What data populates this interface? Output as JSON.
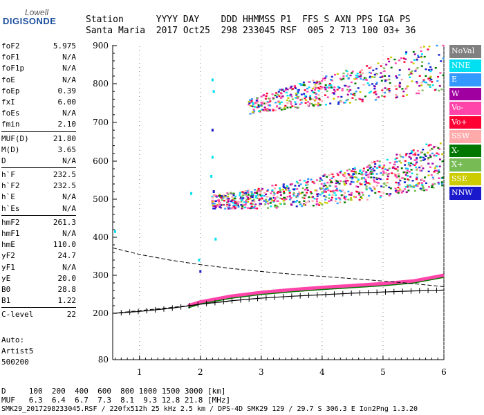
{
  "logo": {
    "line1": "Lowell",
    "line2": "DIGISONDE"
  },
  "header": {
    "row1": "Station      YYYY DAY    DDD HHMMSS P1  FFS S AXN PPS IGA PS",
    "row2": "Santa Maria  2017 Oct25  298 233045 RSF  005 2 713 100 03+ 36"
  },
  "params": {
    "group1": [
      {
        "label": "foF2",
        "value": "5.975"
      },
      {
        "label": "foF1",
        "value": "N/A"
      },
      {
        "label": "foF1p",
        "value": "N/A"
      },
      {
        "label": "foE",
        "value": "N/A"
      },
      {
        "label": "foEp",
        "value": "0.39"
      },
      {
        "label": "fxI",
        "value": "6.00"
      },
      {
        "label": "foEs",
        "value": "N/A"
      },
      {
        "label": "fmin",
        "value": "2.10"
      }
    ],
    "group2": [
      {
        "label": "MUF(D)",
        "value": "21.80"
      },
      {
        "label": "M(D)",
        "value": "3.65"
      },
      {
        "label": "D",
        "value": "N/A"
      }
    ],
    "group3": [
      {
        "label": "h`F",
        "value": "232.5"
      },
      {
        "label": "h`F2",
        "value": "232.5"
      },
      {
        "label": "h`E",
        "value": "N/A"
      },
      {
        "label": "h`Es",
        "value": "N/A"
      }
    ],
    "group4": [
      {
        "label": "hmF2",
        "value": "261.3"
      },
      {
        "label": "hmF1",
        "value": "N/A"
      },
      {
        "label": "hmE",
        "value": "110.0"
      },
      {
        "label": "yF2",
        "value": "24.7"
      },
      {
        "label": "yF1",
        "value": "N/A"
      },
      {
        "label": "yE",
        "value": "20.0"
      },
      {
        "label": "B0",
        "value": "28.8"
      },
      {
        "label": "B1",
        "value": "1.22"
      }
    ],
    "group5": [
      {
        "label": "C-level",
        "value": "22"
      }
    ]
  },
  "meta": {
    "auto_label": "Auto:",
    "artist": "Artist5",
    "code": "500200"
  },
  "legend": [
    {
      "label": "NoVal",
      "color": "#808080"
    },
    {
      "label": "NNE",
      "color": "#00e0f0"
    },
    {
      "label": "E",
      "color": "#3399ff"
    },
    {
      "label": "W",
      "color": "#a000a0"
    },
    {
      "label": "Vo-",
      "color": "#ff44aa"
    },
    {
      "label": "Vo+",
      "color": "#ff0033"
    },
    {
      "label": "SSW",
      "color": "#ffaaaa"
    },
    {
      "label": "X-",
      "color": "#007700"
    },
    {
      "label": "X+",
      "color": "#77bb55"
    },
    {
      "label": "SSE",
      "color": "#cccc00"
    },
    {
      "label": "NNW",
      "color": "#1a1acc"
    }
  ],
  "bottom": {
    "row1": "D     100  200  400  600  800 1000 1500 3000 [km]",
    "row2": "MUF   6.3  6.4  6.7  7.3  8.1  9.3 12.8 21.8 [MHz]"
  },
  "footer": "SMK29_2017298233045.RSF / 220fx512h 25 kHz 2.5 km / DPS-4D SMK29 129 / 29.7 S 306.3 E Ion2Png 1.3.20",
  "chart_data": {
    "type": "scatter",
    "xlim": [
      0.56,
      6.0
    ],
    "ylim": [
      80,
      900
    ],
    "x_ticks": [
      1,
      2,
      3,
      4,
      5,
      6
    ],
    "y_ticks": [
      80,
      200,
      300,
      400,
      500,
      600,
      700,
      800,
      900
    ],
    "y_scale": "nonlinear",
    "o_trace": {
      "x": [
        1.8,
        2.0,
        2.5,
        3.0,
        3.5,
        4.0,
        4.5,
        5.0,
        5.5,
        6.0
      ],
      "y": [
        220,
        230,
        245,
        255,
        262,
        268,
        273,
        278,
        285,
        300
      ]
    },
    "echo_band_1": {
      "x": [
        2.2,
        2.6,
        3.0,
        3.5,
        4.0,
        4.5,
        5.0,
        5.5,
        6.0
      ],
      "y": [
        492,
        497,
        503,
        512,
        524,
        538,
        555,
        575,
        595
      ]
    },
    "echo_band_2": {
      "x": [
        2.8,
        3.2,
        3.6,
        4.0,
        4.5,
        5.0,
        5.5,
        6.0
      ],
      "y": [
        740,
        755,
        768,
        780,
        795,
        810,
        830,
        850
      ]
    },
    "profile_solid": {
      "x": [
        0.56,
        1.0,
        1.5,
        2.0,
        2.5,
        3.0,
        3.5,
        4.0,
        4.5,
        5.0,
        5.5,
        6.0
      ],
      "y": [
        200,
        205,
        213,
        224,
        233,
        240,
        245,
        249,
        253,
        256,
        259,
        261
      ]
    },
    "profile_dashed_upper": {
      "x": [
        0.56,
        1.0,
        1.5,
        2.0,
        2.5,
        3.0,
        3.5,
        4.0,
        4.5,
        5.0,
        5.5,
        6.0
      ],
      "y": [
        372,
        355,
        340,
        328,
        318,
        310,
        303,
        297,
        291,
        285,
        278,
        270
      ]
    },
    "profile_dashed_lower": {
      "x": [
        0.56,
        1.0,
        1.5,
        2.0,
        2.5
      ],
      "y": [
        200,
        207,
        215,
        224,
        232
      ]
    }
  }
}
